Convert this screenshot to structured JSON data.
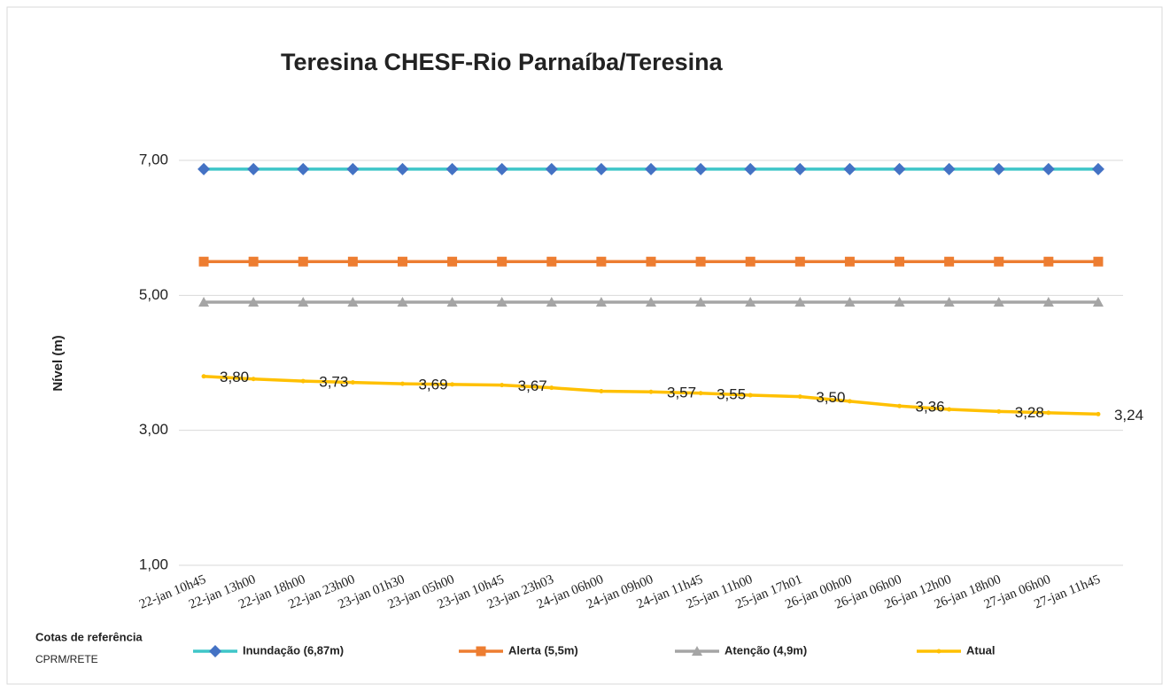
{
  "chart_data": {
    "type": "line",
    "title": "Teresina CHESF-Rio Parnaíba/Teresina",
    "y_label": "Nível (m)",
    "legend_title": "Cotas de referência",
    "source": "CPRM/RETE",
    "categories": [
      "22-jan 10h45",
      "22-jan 13h00",
      "22-jan 18h00",
      "22-jan 23h00",
      "23-jan 01h30",
      "23-jan 05h00",
      "23-jan 10h45",
      "23-jan 23h03",
      "24-jan 06h00",
      "24-jan 09h00",
      "24-jan 11h45",
      "25-jan 11h00",
      "25-jan 17h01",
      "26-jan 00h00",
      "26-jan 06h00",
      "26-jan 12h00",
      "26-jan 18h00",
      "27-jan 06h00",
      "27-jan 11h45"
    ],
    "ylim": [
      1,
      7
    ],
    "yticks": [
      {
        "value": 1,
        "label": "1,00"
      },
      {
        "value": 3,
        "label": "3,00"
      },
      {
        "value": 5,
        "label": "5,00"
      },
      {
        "value": 7,
        "label": "7,00"
      }
    ],
    "grid": true,
    "legend": "bottom",
    "series": [
      {
        "name": "Inundação (6,87m)",
        "color": "#3fc6c8",
        "marker_color": "#4472c4",
        "marker": "diamond",
        "values": [
          6.87,
          6.87,
          6.87,
          6.87,
          6.87,
          6.87,
          6.87,
          6.87,
          6.87,
          6.87,
          6.87,
          6.87,
          6.87,
          6.87,
          6.87,
          6.87,
          6.87,
          6.87,
          6.87
        ]
      },
      {
        "name": "Alerta (5,5m)",
        "color": "#ed7d31",
        "marker_color": "#ed7d31",
        "marker": "square",
        "values": [
          5.5,
          5.5,
          5.5,
          5.5,
          5.5,
          5.5,
          5.5,
          5.5,
          5.5,
          5.5,
          5.5,
          5.5,
          5.5,
          5.5,
          5.5,
          5.5,
          5.5,
          5.5,
          5.5
        ]
      },
      {
        "name": "Atenção (4,9m)",
        "color": "#a5a5a5",
        "marker_color": "#a5a5a5",
        "marker": "triangle",
        "values": [
          4.9,
          4.9,
          4.9,
          4.9,
          4.9,
          4.9,
          4.9,
          4.9,
          4.9,
          4.9,
          4.9,
          4.9,
          4.9,
          4.9,
          4.9,
          4.9,
          4.9,
          4.9,
          4.9
        ]
      },
      {
        "name": "Atual",
        "color": "#ffc000",
        "marker_color": "#ffc000",
        "marker": "dot",
        "values": [
          3.8,
          3.76,
          3.73,
          3.71,
          3.69,
          3.68,
          3.67,
          3.63,
          3.58,
          3.57,
          3.55,
          3.52,
          3.5,
          3.43,
          3.36,
          3.31,
          3.28,
          3.26,
          3.24
        ],
        "value_labels": [
          "3,80",
          null,
          "3,73",
          null,
          "3,69",
          null,
          "3,67",
          null,
          null,
          "3,57",
          "3,55",
          null,
          "3,50",
          null,
          "3,36",
          null,
          "3,28",
          null,
          "3,24"
        ]
      }
    ]
  }
}
